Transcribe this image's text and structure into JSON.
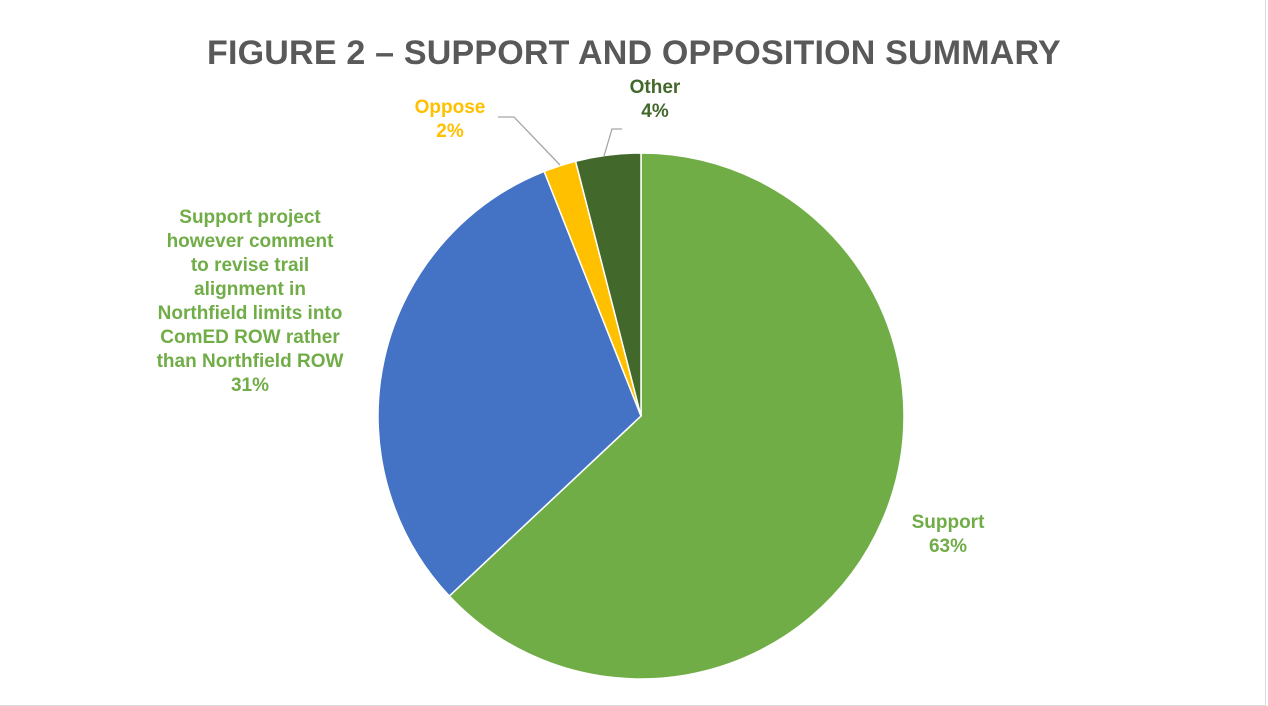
{
  "chart_data": {
    "type": "pie",
    "title": "FIGURE 2 – SUPPORT AND OPPOSITION SUMMARY",
    "start_angle_deg": 0,
    "direction": "clockwise",
    "slices": [
      {
        "name": "Support",
        "value": 63,
        "label": "Support",
        "pct_label": "63%",
        "color": "#70ad47",
        "label_color": "#70ad47"
      },
      {
        "name": "Support project however comment to revise trail alignment in Northfield limits into ComED ROW rather than Northfield ROW",
        "value": 31,
        "label": "Support project however comment to revise trail alignment in Northfield limits into ComED ROW rather than Northfield ROW",
        "label_lines": [
          "Support project",
          "however comment",
          "to revise trail",
          "alignment in",
          "Northfield limits into",
          "ComED ROW rather",
          "than Northfield ROW"
        ],
        "pct_label": "31%",
        "color": "#4472c4",
        "label_color": "#70ad47"
      },
      {
        "name": "Oppose",
        "value": 2,
        "label": "Oppose",
        "pct_label": "2%",
        "color": "#ffc000",
        "label_color": "#ffc000"
      },
      {
        "name": "Other",
        "value": 4,
        "label": "Other",
        "pct_label": "4%",
        "color": "#43682b",
        "label_color": "#43682b"
      }
    ]
  }
}
